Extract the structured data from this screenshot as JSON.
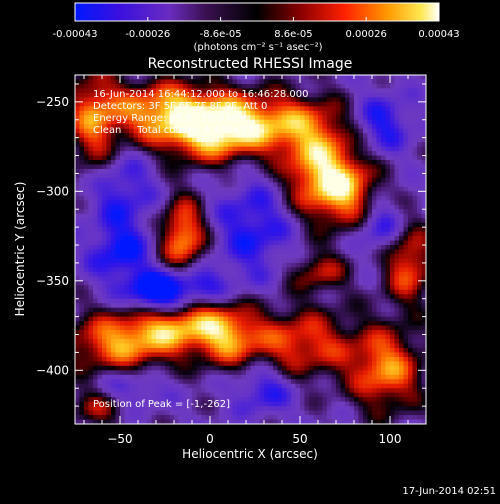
{
  "colorbar": {
    "ticks": [
      "-0.00043",
      "-0.00026",
      "-8.6e-05",
      "8.6e-05",
      "0.00026",
      "0.00043"
    ],
    "unit_label": "(photons cm⁻² s⁻¹ asec⁻²)",
    "range": [
      -0.00043,
      0.00043
    ]
  },
  "chart_data": {
    "type": "heatmap",
    "title": "Reconstructed RHESSI Image",
    "xlabel": "Heliocentric X (arcsec)",
    "ylabel": "Heliocentric Y (arcsec)",
    "xlim": [
      -75,
      120
    ],
    "ylim": [
      -430,
      -235
    ],
    "x_ticks": [
      -50,
      0,
      50,
      100
    ],
    "y_ticks": [
      -250,
      -300,
      -350,
      -400
    ],
    "x_tick_labels": [
      "−50",
      "0",
      "50",
      "100"
    ],
    "y_tick_labels": [
      "−250",
      "−300",
      "−350",
      "−400"
    ],
    "annotations": [
      "16-Jun-2014 16:44:12.000 to 16:46:28.000",
      "Detectors: 3F 5F 6F 7F 8F 9F, Att 0",
      "Energy Range: 25.0 - 50.0 keV",
      "Clean     Total counts: 4.43E+03"
    ],
    "peak_label": "Position of Peak = [-1,-262]",
    "peak_position": [
      -1,
      -262
    ]
  },
  "footer": {
    "timestamp": "17-Jun-2014 02:51"
  },
  "colors": {
    "background": "#000000",
    "text": "#ffffff"
  }
}
